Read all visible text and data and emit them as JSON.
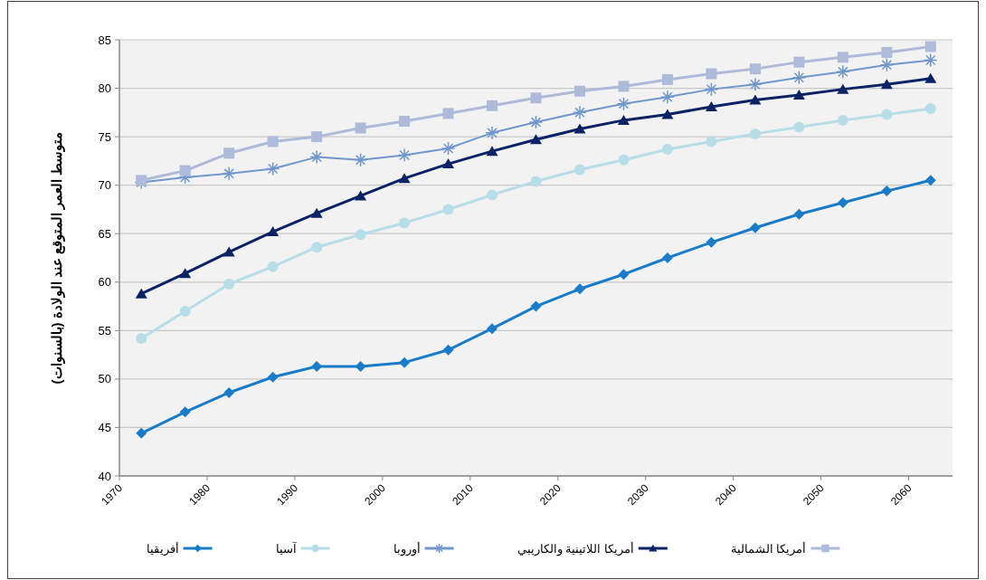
{
  "chart_data": {
    "type": "line",
    "ylabel": "متوسط العمر المتوقع عند الولادة (بالسنوات)",
    "x": [
      1972.5,
      1977.5,
      1982.5,
      1987.5,
      1992.5,
      1997.5,
      2002.5,
      2007.5,
      2012.5,
      2017.5,
      2022.5,
      2027.5,
      2032.5,
      2037.5,
      2042.5,
      2047.5,
      2052.5,
      2057.5,
      2062.5
    ],
    "xlim": [
      1970,
      2065
    ],
    "xticks": [
      1970,
      1980,
      1990,
      2000,
      2010,
      2020,
      2030,
      2040,
      2050,
      2060
    ],
    "ylim": [
      40,
      85
    ],
    "yticks": [
      40,
      45,
      50,
      55,
      60,
      65,
      70,
      75,
      80,
      85
    ],
    "grid": "y",
    "legend": "bottom",
    "series": [
      {
        "name": "أفريقيا",
        "color": "#1a7cc8",
        "marker": "diamond",
        "values": [
          44.4,
          46.6,
          48.6,
          50.2,
          51.3,
          51.3,
          51.7,
          53.0,
          55.2,
          57.5,
          59.3,
          60.8,
          62.5,
          64.1,
          65.6,
          67.0,
          68.2,
          69.4,
          70.5
        ]
      },
      {
        "name": "آسيا",
        "color": "#b7dde8",
        "marker": "circle",
        "values": [
          54.2,
          57.0,
          59.8,
          61.6,
          63.6,
          64.9,
          66.1,
          67.5,
          69.0,
          70.4,
          71.6,
          72.6,
          73.7,
          74.5,
          75.3,
          76.0,
          76.7,
          77.3,
          77.9
        ]
      },
      {
        "name": "أوروبا",
        "color": "#6f97cb",
        "marker": "cross",
        "values": [
          70.3,
          70.8,
          71.2,
          71.7,
          72.9,
          72.6,
          73.1,
          73.8,
          75.4,
          76.5,
          77.5,
          78.4,
          79.1,
          79.9,
          80.4,
          81.1,
          81.7,
          82.4,
          82.9
        ]
      },
      {
        "name": "أمريكا اللاتينية والكاريبي",
        "color": "#0b2265",
        "marker": "triangle",
        "values": [
          58.8,
          60.9,
          63.1,
          65.2,
          67.1,
          68.9,
          70.7,
          72.2,
          73.5,
          74.7,
          75.8,
          76.7,
          77.3,
          78.1,
          78.8,
          79.3,
          79.9,
          80.4,
          81.0
        ]
      },
      {
        "name": "أمريكا الشمالية",
        "color": "#adbad9",
        "marker": "square",
        "values": [
          70.5,
          71.5,
          73.3,
          74.5,
          75.0,
          75.9,
          76.6,
          77.4,
          78.2,
          79.0,
          79.7,
          80.2,
          80.9,
          81.5,
          82.0,
          82.7,
          83.2,
          83.7,
          84.3
        ]
      }
    ]
  }
}
